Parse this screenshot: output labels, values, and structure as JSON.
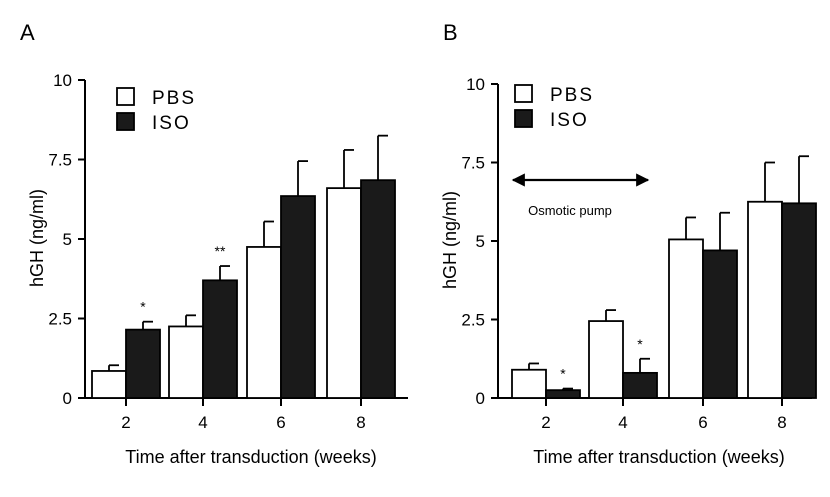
{
  "chart_data": [
    {
      "panel": "A",
      "type": "bar",
      "categories": [
        "2",
        "4",
        "6",
        "8"
      ],
      "series": [
        {
          "name": "PBS",
          "color": "#ffffff",
          "values": [
            0.85,
            2.25,
            4.75,
            6.6
          ],
          "errors": [
            0.18,
            0.35,
            0.8,
            1.2
          ]
        },
        {
          "name": "ISO",
          "color": "#1a1a1a",
          "values": [
            2.15,
            3.7,
            6.35,
            6.85
          ],
          "errors": [
            0.25,
            0.45,
            1.1,
            1.4
          ]
        }
      ],
      "significance": [
        {
          "category": "2",
          "series": "ISO",
          "label": "*"
        },
        {
          "category": "4",
          "series": "ISO",
          "label": "**"
        }
      ],
      "ylabel": "hGH (ng/ml)",
      "xlabel": "Time after transduction (weeks)",
      "ylim": [
        0,
        10
      ],
      "yticks": [
        "0",
        "2.5",
        "5",
        "7.5",
        "10"
      ],
      "legend_position": "top-left",
      "annotation": ""
    },
    {
      "panel": "B",
      "type": "bar",
      "categories": [
        "2",
        "4",
        "6",
        "8"
      ],
      "series": [
        {
          "name": "PBS",
          "color": "#ffffff",
          "values": [
            0.9,
            2.45,
            5.05,
            6.25
          ],
          "errors": [
            0.2,
            0.35,
            0.7,
            1.25
          ]
        },
        {
          "name": "ISO",
          "color": "#1a1a1a",
          "values": [
            0.25,
            0.8,
            4.7,
            6.2
          ],
          "errors": [
            0.05,
            0.45,
            1.2,
            1.5
          ]
        }
      ],
      "significance": [
        {
          "category": "2",
          "series": "ISO",
          "label": "*"
        },
        {
          "category": "4",
          "series": "ISO",
          "label": "*"
        }
      ],
      "ylabel": "hGH (ng/ml)",
      "xlabel": "Time after transduction (weeks)",
      "ylim": [
        0,
        10
      ],
      "yticks": [
        "0",
        "2.5",
        "5",
        "7.5",
        "10"
      ],
      "legend_position": "top-left",
      "annotation": "Osmotic pump"
    }
  ]
}
